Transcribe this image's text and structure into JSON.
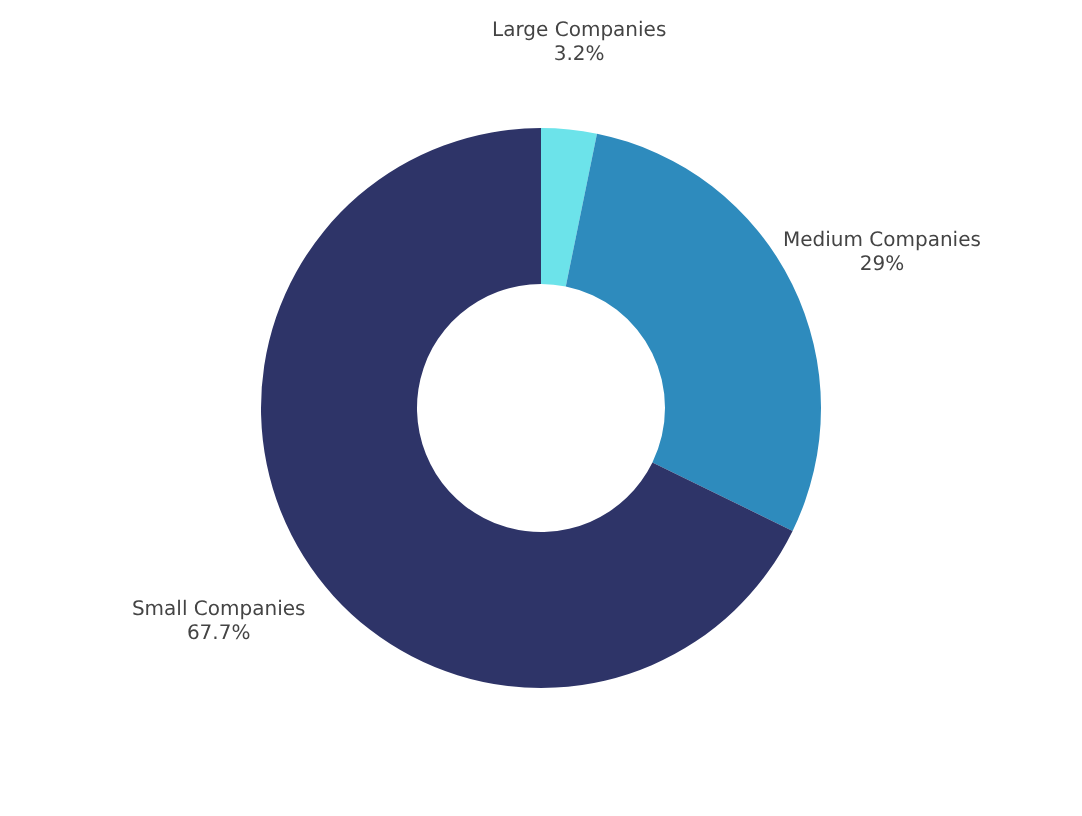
{
  "chart_data": {
    "type": "donut",
    "categories": [
      "Large Companies",
      "Medium Companies",
      "Small Companies"
    ],
    "values": [
      3.2,
      29,
      67.7
    ],
    "value_labels": [
      "3.2%",
      "29%",
      "67.7%"
    ],
    "colors": [
      "#6ce3ea",
      "#2e8bbd",
      "#2e3468"
    ],
    "legend": false
  }
}
